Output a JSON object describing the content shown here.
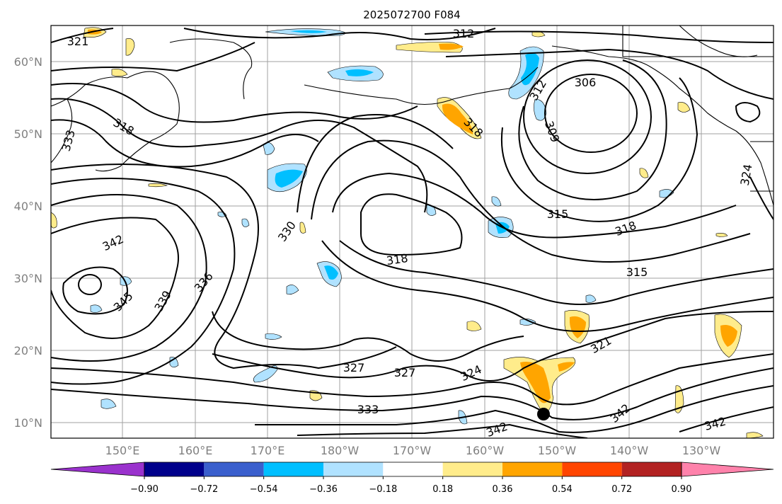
{
  "title": "2025072700 F084",
  "lat_labels": [
    "60°N",
    "50°N",
    "40°N",
    "30°N",
    "20°N",
    "10°N"
  ],
  "lon_labels": [
    "150°E",
    "160°E",
    "170°E",
    "180°W",
    "170°W",
    "160°W",
    "150°W",
    "140°W",
    "130°W"
  ],
  "colorbar": {
    "colors": [
      "#9a32cd",
      "#00008b",
      "#3a5fcd",
      "#00bfff",
      "#b0e2ff",
      "#ffffff",
      "#ffec8b",
      "#ffa500",
      "#ff4500",
      "#b22222",
      "#ff82ab"
    ],
    "tick_labels": [
      "−0.90",
      "−0.72",
      "−0.54",
      "−0.36",
      "−0.18",
      "0.18",
      "0.36",
      "0.54",
      "0.72",
      "0.90"
    ]
  },
  "contour_labels": [
    "321",
    "312",
    "306",
    "312",
    "309",
    "318",
    "318",
    "333",
    "315",
    "318",
    "330",
    "342",
    "318",
    "315",
    "345",
    "339",
    "336",
    "327",
    "327",
    "324",
    "321",
    "333",
    "342",
    "342",
    "342",
    "324"
  ],
  "storm_marker": "tropical-cyclone-position"
}
